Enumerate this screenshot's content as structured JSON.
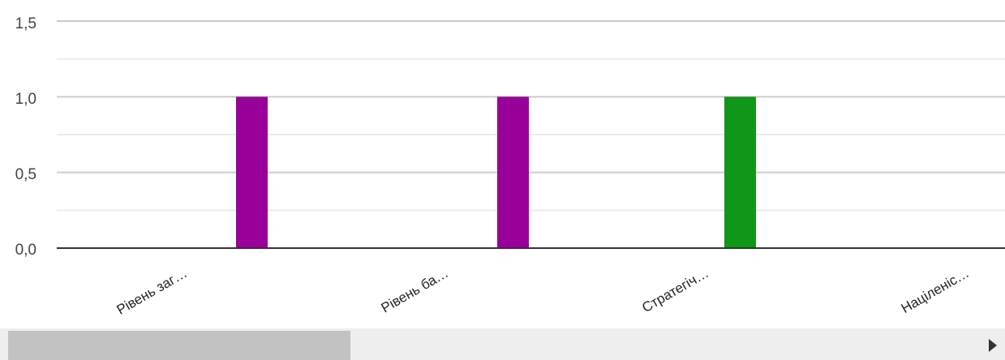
{
  "chart_data": {
    "type": "bar",
    "categories": [
      "Рівень заг…",
      "Рівень ба…",
      "Стратегіч…",
      "Націленіс…"
    ],
    "y_ticks": [
      "0,0",
      "0,5",
      "1,0",
      "1,5"
    ],
    "ylim": [
      0,
      1.5
    ],
    "grid": true,
    "bars": [
      {
        "category_index": 0,
        "value": 1.0,
        "color": "#990099"
      },
      {
        "category_index": 1,
        "value": 1.0,
        "color": "#990099"
      },
      {
        "category_index": 2,
        "value": 1.0,
        "color": "#109618"
      }
    ],
    "title": "",
    "xlabel": "",
    "ylabel": ""
  },
  "colors": {
    "purple": "#990099",
    "green": "#109618",
    "grid_major": "#cccccc",
    "grid_minor": "#ebebeb",
    "baseline": "#333333"
  },
  "scrollbar": {
    "arrow_icon": "triangle-right-icon"
  }
}
